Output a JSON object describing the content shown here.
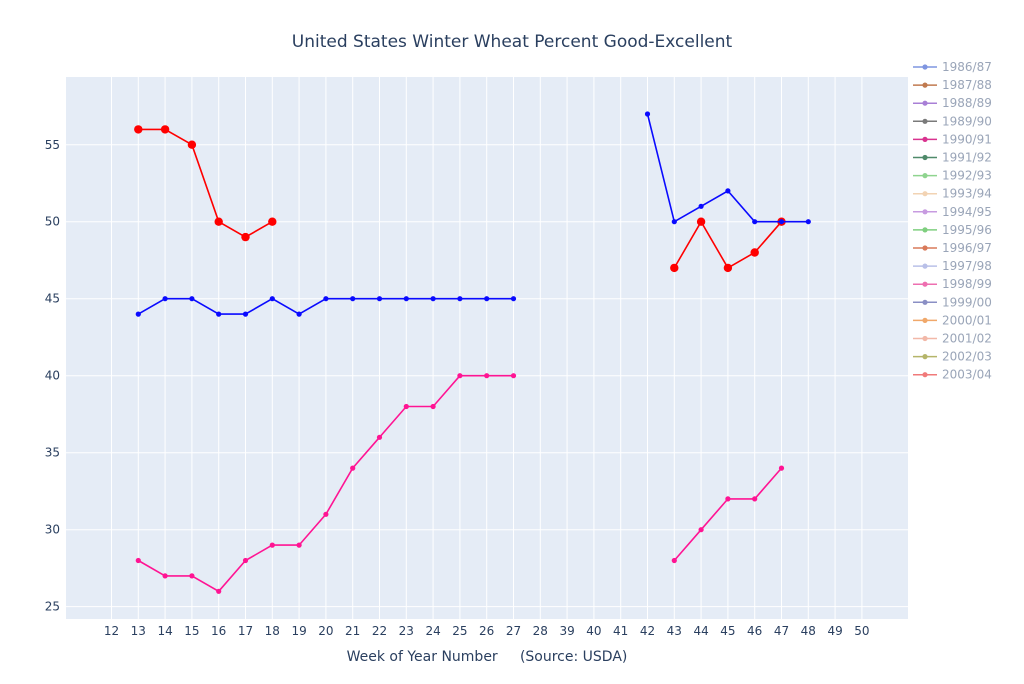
{
  "chart_data": {
    "type": "line",
    "title": "United States Winter Wheat Percent Good-Excellent",
    "xlabel": "Week of Year Number     (Source: USDA)",
    "ylabel": "",
    "categories": [
      "12",
      "13",
      "14",
      "15",
      "16",
      "17",
      "18",
      "19",
      "20",
      "21",
      "22",
      "23",
      "24",
      "25",
      "26",
      "27",
      "28",
      "39",
      "40",
      "41",
      "42",
      "43",
      "44",
      "45",
      "46",
      "47",
      "48",
      "49",
      "50"
    ],
    "y_ticks": [
      25,
      30,
      35,
      40,
      45,
      50,
      55
    ],
    "ylim": [
      24.2,
      59.4
    ],
    "grid": true,
    "legend_position": "right",
    "legend_entries": [
      {
        "label": "1986/87",
        "color": "#7f95e0"
      },
      {
        "label": "1987/88",
        "color": "#c07a4f"
      },
      {
        "label": "1988/89",
        "color": "#a87fd6"
      },
      {
        "label": "1989/90",
        "color": "#7a7a7a"
      },
      {
        "label": "1990/91",
        "color": "#d9338f"
      },
      {
        "label": "1991/92",
        "color": "#4f8a6a"
      },
      {
        "label": "1992/93",
        "color": "#8fd48f"
      },
      {
        "label": "1993/94",
        "color": "#f2d3b3"
      },
      {
        "label": "1994/95",
        "color": "#c79be0"
      },
      {
        "label": "1995/96",
        "color": "#7fcf7f"
      },
      {
        "label": "1996/97",
        "color": "#d97a5a"
      },
      {
        "label": "1997/98",
        "color": "#b9c0e8"
      },
      {
        "label": "1998/99",
        "color": "#ee6fb0"
      },
      {
        "label": "1999/00",
        "color": "#8a8fc4"
      },
      {
        "label": "2000/01",
        "color": "#f0a86a"
      },
      {
        "label": "2001/02",
        "color": "#f2b8a8"
      },
      {
        "label": "2002/03",
        "color": "#b5b56a"
      },
      {
        "label": "2003/04",
        "color": "#f07a7a"
      }
    ],
    "series": [
      {
        "color": "#ff0000",
        "marker": "large",
        "points": [
          [
            "13",
            56
          ],
          [
            "14",
            56
          ],
          [
            "15",
            55
          ],
          [
            "16",
            50
          ],
          [
            "17",
            49
          ],
          [
            "18",
            50
          ],
          [
            "43",
            47
          ],
          [
            "44",
            50
          ],
          [
            "45",
            47
          ],
          [
            "46",
            48
          ],
          [
            "47",
            50
          ]
        ]
      },
      {
        "color": "#0a0aff",
        "marker": "small",
        "points": [
          [
            "13",
            44
          ],
          [
            "14",
            45
          ],
          [
            "15",
            45
          ],
          [
            "16",
            44
          ],
          [
            "17",
            44
          ],
          [
            "18",
            45
          ],
          [
            "19",
            44
          ],
          [
            "20",
            45
          ],
          [
            "21",
            45
          ],
          [
            "22",
            45
          ],
          [
            "23",
            45
          ],
          [
            "24",
            45
          ],
          [
            "25",
            45
          ],
          [
            "26",
            45
          ],
          [
            "27",
            45
          ],
          [
            "42",
            57
          ],
          [
            "43",
            50
          ],
          [
            "44",
            51
          ],
          [
            "45",
            52
          ],
          [
            "46",
            50
          ],
          [
            "47",
            50
          ],
          [
            "48",
            50
          ]
        ]
      },
      {
        "color": "#ff1493",
        "marker": "small",
        "points": [
          [
            "13",
            28
          ],
          [
            "14",
            27
          ],
          [
            "15",
            27
          ],
          [
            "16",
            26
          ],
          [
            "17",
            28
          ],
          [
            "18",
            29
          ],
          [
            "19",
            29
          ],
          [
            "20",
            31
          ],
          [
            "21",
            34
          ],
          [
            "22",
            36
          ],
          [
            "23",
            38
          ],
          [
            "24",
            38
          ],
          [
            "25",
            40
          ],
          [
            "26",
            40
          ],
          [
            "27",
            40
          ],
          [
            "43",
            28
          ],
          [
            "44",
            30
          ],
          [
            "45",
            32
          ],
          [
            "46",
            32
          ],
          [
            "47",
            34
          ]
        ]
      }
    ]
  }
}
